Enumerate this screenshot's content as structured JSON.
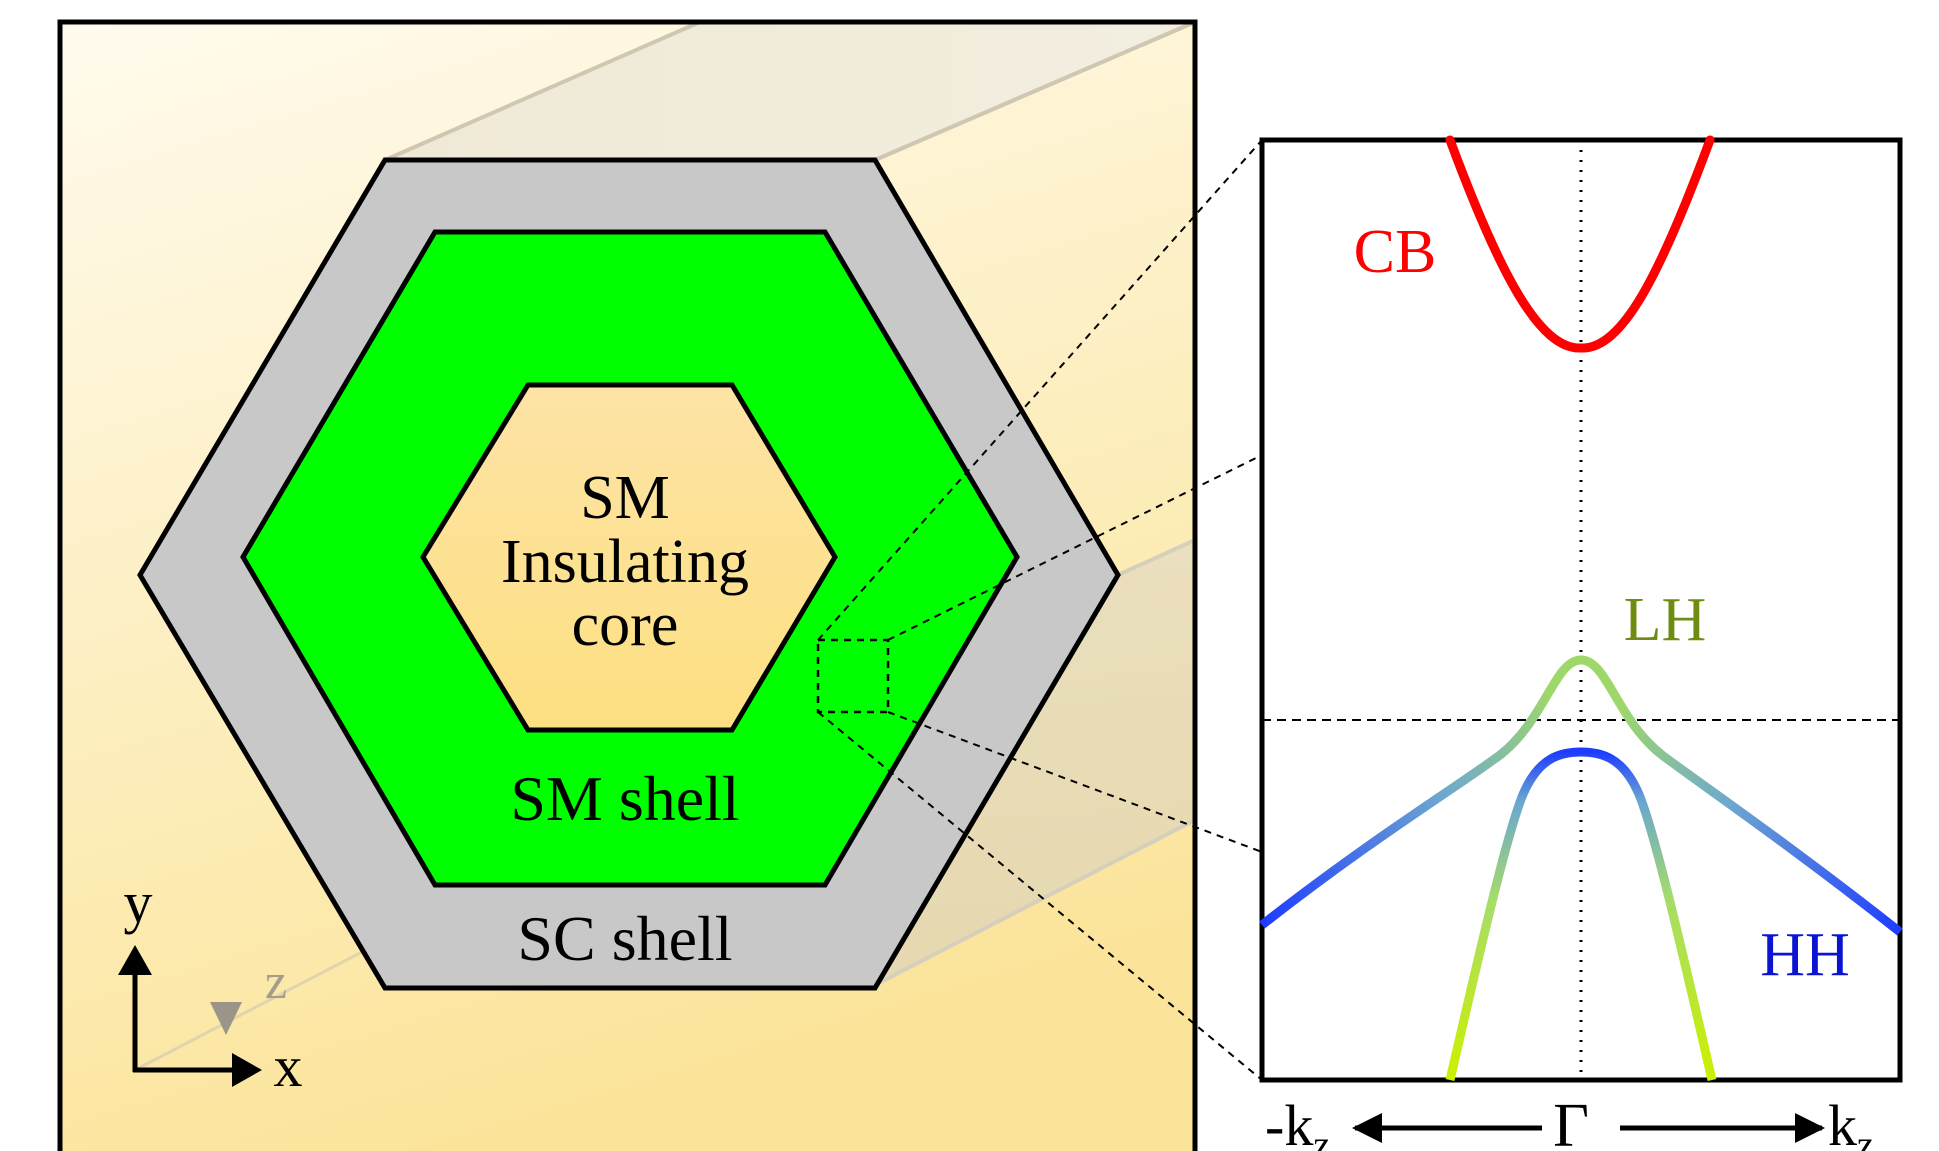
{
  "cross_section": {
    "core_label_line1": "SM",
    "core_label_line2": "Insulating",
    "core_label_line3": "core",
    "sm_shell_label": "SM shell",
    "sc_shell_label": "SC shell",
    "axes": {
      "y": "y",
      "x": "x",
      "z": "z"
    }
  },
  "band_diagram": {
    "cb_label": "CB",
    "lh_label": "LH",
    "hh_label": "HH",
    "k_left_base": "-k",
    "k_left_sub": "z",
    "gamma": "Γ",
    "k_right_base": "k",
    "k_right_sub": "z"
  },
  "colors": {
    "sm_shell": "#00ff00",
    "sc_shell": "#c8c8c8",
    "core": "#fce29a",
    "cb": "#ff0000",
    "lh_label": "#6e8c12",
    "hh_label": "#0a14d2"
  }
}
